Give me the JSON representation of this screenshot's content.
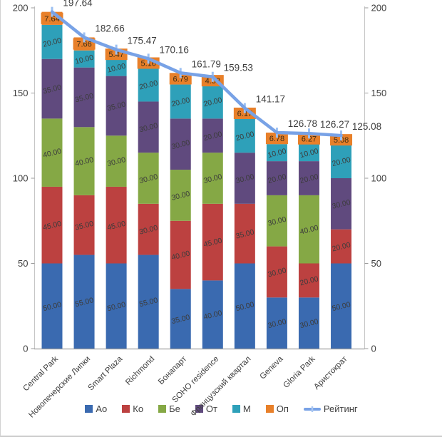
{
  "chart_data": {
    "type": "bar",
    "subtype": "stacked-column-with-line",
    "title": "",
    "categories": [
      "Central Park",
      "Новопечерские Липки",
      "Smart Plaza",
      "Richmond",
      "Бонапарт",
      "SOHO residence",
      "Французский квартал",
      "Geneva",
      "Gloria Park",
      "Аристократ"
    ],
    "series": [
      {
        "name": "Ао",
        "color": "#3a6ab0",
        "values": [
          50,
          55,
          50,
          55,
          35,
          40,
          50,
          30,
          30,
          50
        ]
      },
      {
        "name": "Ко",
        "color": "#bc4140",
        "values": [
          45,
          35,
          45,
          30,
          40,
          45,
          35,
          30,
          20,
          20
        ]
      },
      {
        "name": "Бе",
        "color": "#85a845",
        "values": [
          40,
          40,
          30,
          30,
          30,
          30,
          0,
          30,
          40,
          0
        ]
      },
      {
        "name": "От",
        "color": "#604a7e",
        "values": [
          35,
          35,
          35,
          30,
          30,
          20,
          30,
          20,
          20,
          30
        ]
      },
      {
        "name": "М",
        "color": "#2ea0b9",
        "values": [
          20,
          10,
          10,
          20,
          20,
          20,
          20,
          10,
          10,
          20
        ]
      },
      {
        "name": "Оп",
        "color": "#e8802a",
        "values": [
          7.64,
          7.66,
          5.47,
          5.16,
          6.79,
          4.53,
          6.17,
          6.78,
          6.27,
          5.08
        ]
      }
    ],
    "line_series": {
      "name": "Рейтинг",
      "color": "#78a2e6",
      "marker_color": "#9cc0f2",
      "values": [
        197.64,
        182.66,
        175.47,
        170.16,
        161.79,
        159.53,
        141.17,
        126.78,
        126.27,
        125.08
      ]
    },
    "y_axis_left": {
      "min": 0,
      "max": 200,
      "ticks": [
        0,
        50,
        100,
        150,
        200
      ]
    },
    "y_axis_right": {
      "min": 0,
      "max": 200,
      "ticks": [
        0,
        50,
        100,
        150,
        200
      ]
    },
    "grid": "off",
    "legend_position": "bottom",
    "value_label_decimals": 2,
    "label_color": "#3c3c3c",
    "axis_line_color": "#c6c6c6",
    "baseline_color": "#9e9e9e"
  }
}
